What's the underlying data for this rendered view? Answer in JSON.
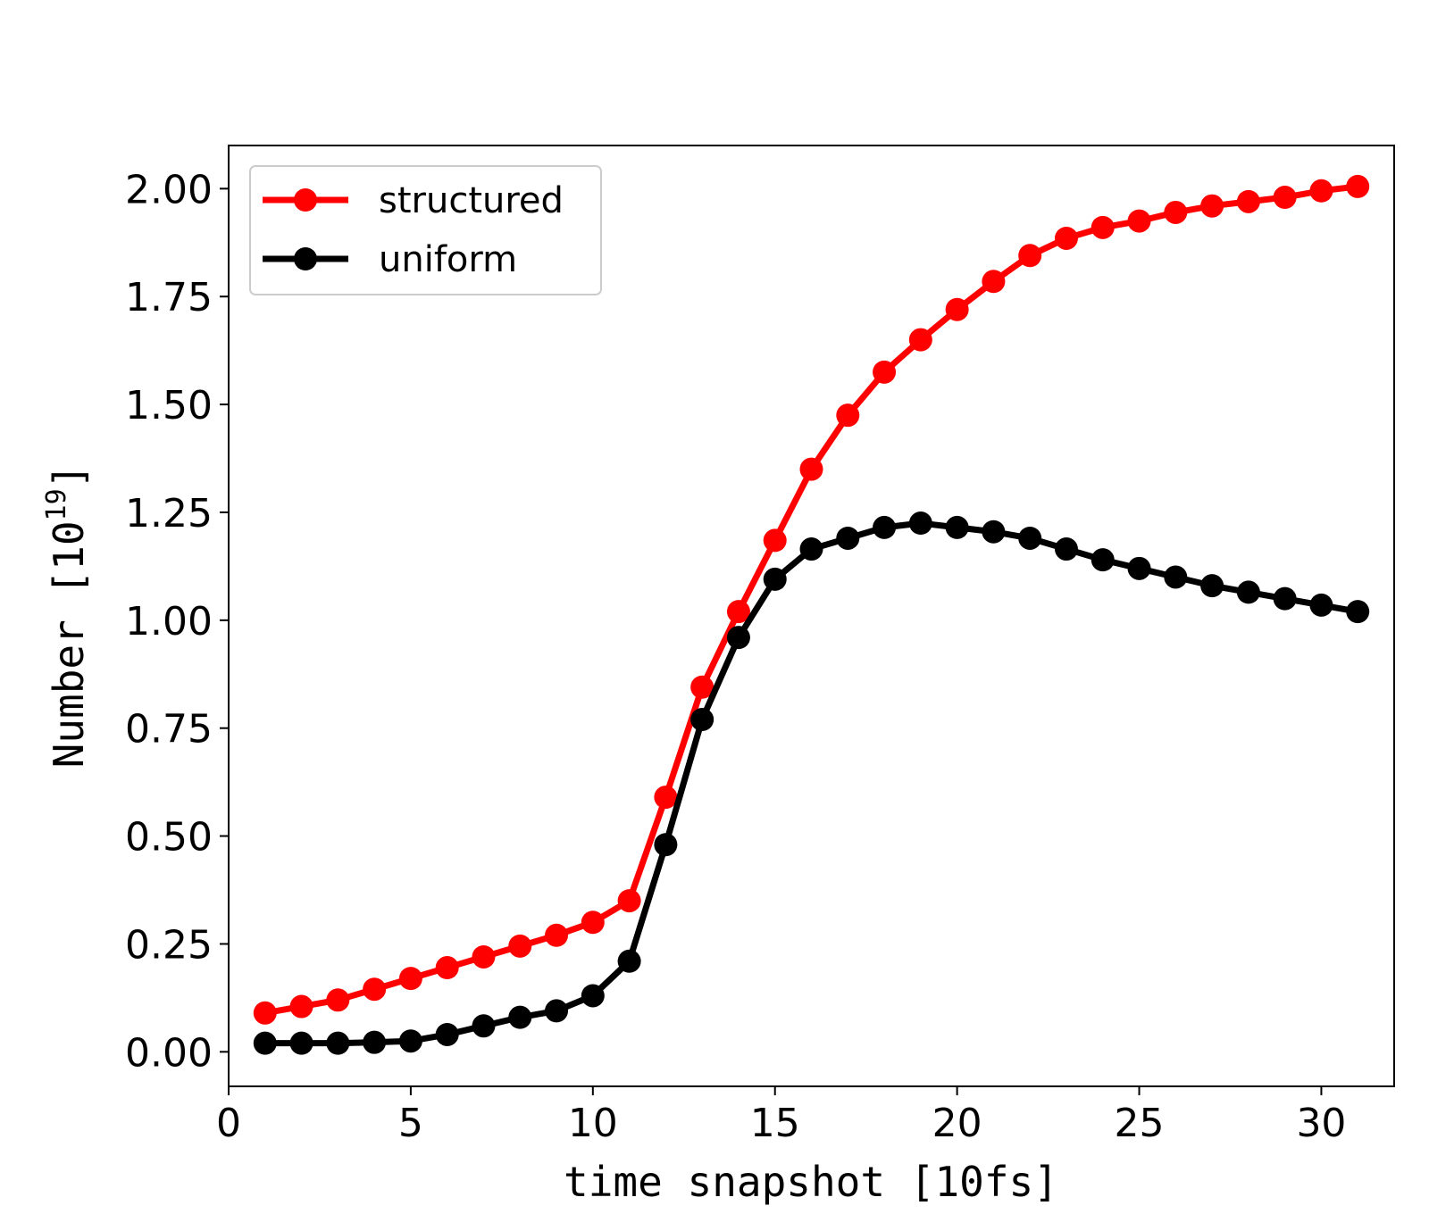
{
  "chart_data": {
    "type": "line",
    "title": "",
    "xlabel": "time snapshot [10fs]",
    "ylabel": {
      "base": "Number [10",
      "exponent": "19",
      "suffix": "]"
    },
    "xlim": [
      0,
      32
    ],
    "ylim": [
      -0.08,
      2.1
    ],
    "xticks": [
      0,
      5,
      10,
      15,
      20,
      25,
      30
    ],
    "yticks": [
      0.0,
      0.25,
      0.5,
      0.75,
      1.0,
      1.25,
      1.5,
      1.75,
      2.0
    ],
    "ytick_labels": [
      "0.00",
      "0.25",
      "0.50",
      "0.75",
      "1.00",
      "1.25",
      "1.50",
      "1.75",
      "2.00"
    ],
    "grid": false,
    "legend_position": "top-left",
    "x": [
      1,
      2,
      3,
      4,
      5,
      6,
      7,
      8,
      9,
      10,
      11,
      12,
      13,
      14,
      15,
      16,
      17,
      18,
      19,
      20,
      21,
      22,
      23,
      24,
      25,
      26,
      27,
      28,
      29,
      30,
      31
    ],
    "series": [
      {
        "name": "structured",
        "color": "#ff0000",
        "values": [
          0.09,
          0.105,
          0.12,
          0.145,
          0.17,
          0.195,
          0.22,
          0.245,
          0.27,
          0.3,
          0.35,
          0.59,
          0.845,
          1.02,
          1.185,
          1.35,
          1.475,
          1.575,
          1.65,
          1.72,
          1.785,
          1.845,
          1.885,
          1.91,
          1.925,
          1.945,
          1.96,
          1.97,
          1.98,
          1.995,
          2.005
        ]
      },
      {
        "name": "uniform",
        "color": "#000000",
        "values": [
          0.02,
          0.02,
          0.02,
          0.022,
          0.025,
          0.04,
          0.06,
          0.08,
          0.095,
          0.13,
          0.21,
          0.48,
          0.77,
          0.96,
          1.095,
          1.165,
          1.19,
          1.215,
          1.225,
          1.215,
          1.205,
          1.19,
          1.165,
          1.14,
          1.12,
          1.1,
          1.08,
          1.065,
          1.05,
          1.035,
          1.02
        ]
      }
    ]
  }
}
